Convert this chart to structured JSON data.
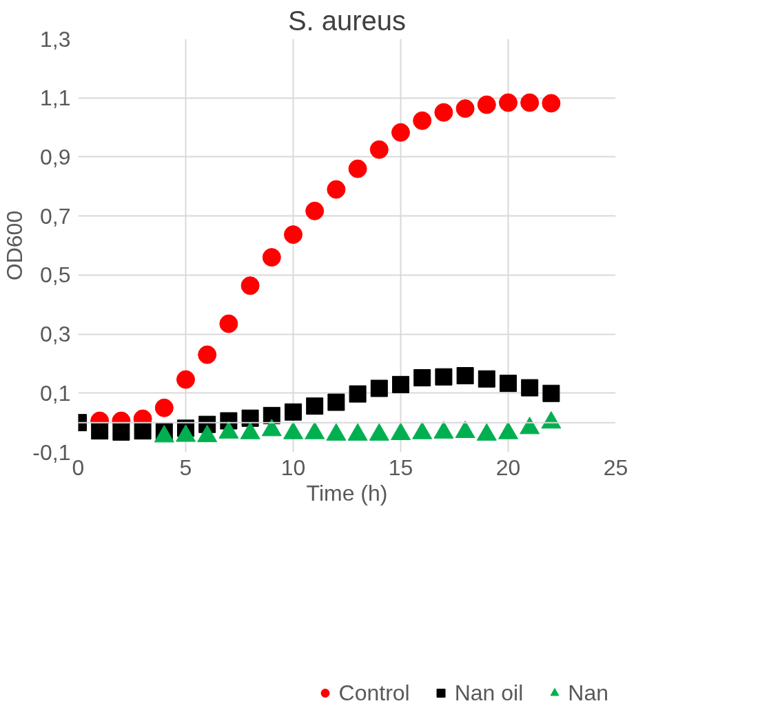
{
  "chart_data": {
    "type": "scatter",
    "title": "S. aureus",
    "xlabel": "Time (h)",
    "ylabel": "OD600",
    "x": [
      0,
      1,
      2,
      3,
      4,
      5,
      6,
      7,
      8,
      9,
      10,
      11,
      12,
      13,
      14,
      15,
      16,
      17,
      18,
      19,
      20,
      21,
      22
    ],
    "xlim": [
      0,
      25
    ],
    "xticks": [
      0,
      5,
      10,
      15,
      20,
      25
    ],
    "ylim": [
      -0.1,
      1.3
    ],
    "yticks": [
      {
        "value": -0.1,
        "label": "-0,1"
      },
      {
        "value": 0.1,
        "label": "0,1"
      },
      {
        "value": 0.3,
        "label": "0,3"
      },
      {
        "value": 0.5,
        "label": "0,5"
      },
      {
        "value": 0.7,
        "label": "0,7"
      },
      {
        "value": 0.9,
        "label": "0,9"
      },
      {
        "value": 1.1,
        "label": "1,1"
      },
      {
        "value": 1.3,
        "label": "1,3"
      }
    ],
    "grid": true,
    "legend": "bottom",
    "series": [
      {
        "name": "Control",
        "color": "#ff0000",
        "marker": "circle",
        "values": [
          null,
          0.006,
          0.006,
          0.013,
          0.05,
          0.146,
          0.23,
          0.335,
          0.464,
          0.56,
          0.637,
          0.717,
          0.79,
          0.86,
          0.925,
          0.983,
          1.023,
          1.051,
          1.064,
          1.077,
          1.084,
          1.084,
          1.082
        ]
      },
      {
        "name": "Nan",
        "color": "#00b050",
        "marker": "triangle",
        "values": [
          null,
          null,
          null,
          null,
          -0.047,
          -0.045,
          -0.046,
          -0.034,
          -0.036,
          -0.026,
          -0.036,
          -0.036,
          -0.041,
          -0.041,
          -0.041,
          -0.039,
          -0.036,
          -0.034,
          -0.032,
          -0.041,
          -0.036,
          -0.019,
          0.0
        ]
      },
      {
        "name": "Nan oil",
        "color": "#000000",
        "marker": "square",
        "values": [
          0.0,
          -0.028,
          -0.032,
          -0.028,
          -0.03,
          -0.019,
          -0.006,
          0.006,
          0.015,
          0.024,
          0.036,
          0.056,
          0.069,
          0.097,
          0.116,
          0.129,
          0.152,
          0.155,
          0.159,
          0.148,
          0.133,
          0.118,
          0.099
        ]
      }
    ]
  }
}
